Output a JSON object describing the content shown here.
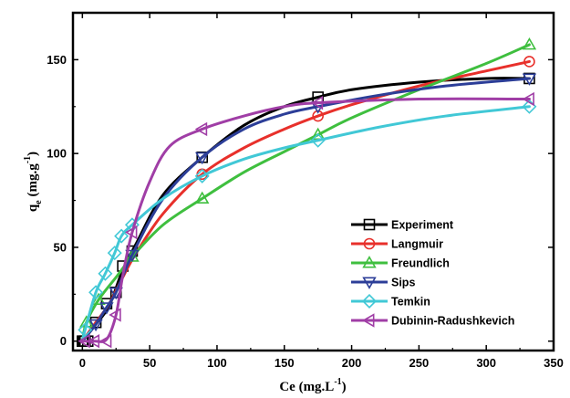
{
  "chart_data": {
    "type": "line",
    "xlabel": "Ce (mg.L",
    "xlabel_sup": "-1",
    "xlabel_close": ")",
    "ylabel_main": "q",
    "ylabel_sub": "e",
    "ylabel_unit": " (mg.g",
    "ylabel_sup": "-1",
    "ylabel_close": ")",
    "xlim": [
      -7,
      350
    ],
    "ylim": [
      -5,
      175
    ],
    "xticks": [
      "0",
      "50",
      "100",
      "150",
      "200",
      "250",
      "300",
      "350"
    ],
    "yticks": [
      "0",
      "50",
      "100",
      "150"
    ],
    "legend_position": "bottom-right",
    "series": [
      {
        "name": "Experiment",
        "color": "#000000",
        "marker": "square",
        "markers": [
          [
            0,
            0
          ],
          [
            1,
            0
          ],
          [
            2,
            0
          ],
          [
            4,
            0
          ],
          [
            10,
            10
          ],
          [
            18,
            20
          ],
          [
            25,
            26
          ],
          [
            30,
            40
          ],
          [
            37,
            48
          ],
          [
            89,
            98
          ],
          [
            175,
            130
          ],
          [
            332,
            140
          ]
        ],
        "curve": [
          [
            0,
            0
          ],
          [
            10,
            9
          ],
          [
            20,
            19
          ],
          [
            30,
            38
          ],
          [
            40,
            52
          ],
          [
            60,
            78
          ],
          [
            89,
            98
          ],
          [
            120,
            115
          ],
          [
            150,
            125
          ],
          [
            175,
            130
          ],
          [
            200,
            134
          ],
          [
            250,
            138
          ],
          [
            300,
            140
          ],
          [
            332,
            140
          ]
        ]
      },
      {
        "name": "Langmuir",
        "color": "#e8302b",
        "marker": "circle",
        "markers": [
          [
            89,
            89
          ],
          [
            175,
            120
          ],
          [
            332,
            149
          ]
        ],
        "curve": [
          [
            0,
            0
          ],
          [
            10,
            10
          ],
          [
            20,
            20
          ],
          [
            30,
            34
          ],
          [
            40,
            47
          ],
          [
            60,
            68
          ],
          [
            89,
            89
          ],
          [
            120,
            103
          ],
          [
            150,
            113
          ],
          [
            175,
            120
          ],
          [
            200,
            126
          ],
          [
            250,
            136
          ],
          [
            300,
            144
          ],
          [
            332,
            149
          ]
        ]
      },
      {
        "name": "Freundlich",
        "color": "#3fbf3f",
        "marker": "triangle-up",
        "markers": [
          [
            3,
            10
          ],
          [
            12,
            22
          ],
          [
            37,
            45
          ],
          [
            89,
            76
          ],
          [
            175,
            110
          ],
          [
            332,
            158
          ]
        ],
        "curve": [
          [
            0,
            0
          ],
          [
            3,
            10
          ],
          [
            12,
            22
          ],
          [
            25,
            34
          ],
          [
            37,
            45
          ],
          [
            60,
            62
          ],
          [
            89,
            76
          ],
          [
            120,
            90
          ],
          [
            150,
            101
          ],
          [
            175,
            110
          ],
          [
            200,
            119
          ],
          [
            250,
            134
          ],
          [
            300,
            148
          ],
          [
            332,
            158
          ]
        ]
      },
      {
        "name": "Sips",
        "color": "#2c3e98",
        "marker": "triangle-down",
        "markers": [
          [
            10,
            9
          ],
          [
            18,
            18
          ],
          [
            25,
            26
          ],
          [
            37,
            46
          ],
          [
            89,
            98
          ],
          [
            175,
            125
          ],
          [
            332,
            140
          ]
        ],
        "curve": [
          [
            0,
            0
          ],
          [
            10,
            9
          ],
          [
            18,
            18
          ],
          [
            25,
            26
          ],
          [
            37,
            46
          ],
          [
            60,
            76
          ],
          [
            89,
            98
          ],
          [
            120,
            113
          ],
          [
            150,
            121
          ],
          [
            175,
            125
          ],
          [
            220,
            131
          ],
          [
            270,
            136
          ],
          [
            332,
            140
          ]
        ]
      },
      {
        "name": "Temkin",
        "color": "#41c8d6",
        "marker": "diamond",
        "markers": [
          [
            2,
            6
          ],
          [
            10,
            26
          ],
          [
            17,
            36
          ],
          [
            24,
            47
          ],
          [
            29,
            56
          ],
          [
            37,
            62
          ],
          [
            89,
            88
          ],
          [
            175,
            107
          ],
          [
            332,
            125
          ]
        ],
        "curve": [
          [
            0,
            0
          ],
          [
            2,
            6
          ],
          [
            10,
            26
          ],
          [
            17,
            36
          ],
          [
            24,
            47
          ],
          [
            29,
            56
          ],
          [
            37,
            62
          ],
          [
            60,
            76
          ],
          [
            89,
            88
          ],
          [
            120,
            97
          ],
          [
            150,
            103
          ],
          [
            175,
            107
          ],
          [
            220,
            114
          ],
          [
            270,
            120
          ],
          [
            332,
            125
          ]
        ]
      },
      {
        "name": "Dubinin-Radushkevich",
        "color": "#a03ea6",
        "marker": "triangle-left",
        "markers": [
          [
            2,
            0
          ],
          [
            9,
            0
          ],
          [
            18,
            0
          ],
          [
            25,
            14
          ],
          [
            37,
            58
          ],
          [
            89,
            113
          ],
          [
            175,
            127
          ],
          [
            332,
            129
          ]
        ],
        "curve": [
          [
            0,
            0
          ],
          [
            9,
            0
          ],
          [
            18,
            1
          ],
          [
            25,
            14
          ],
          [
            30,
            35
          ],
          [
            37,
            58
          ],
          [
            50,
            85
          ],
          [
            65,
            104
          ],
          [
            89,
            113
          ],
          [
            120,
            120
          ],
          [
            150,
            125
          ],
          [
            175,
            127
          ],
          [
            250,
            129
          ],
          [
            332,
            129
          ]
        ]
      }
    ]
  }
}
